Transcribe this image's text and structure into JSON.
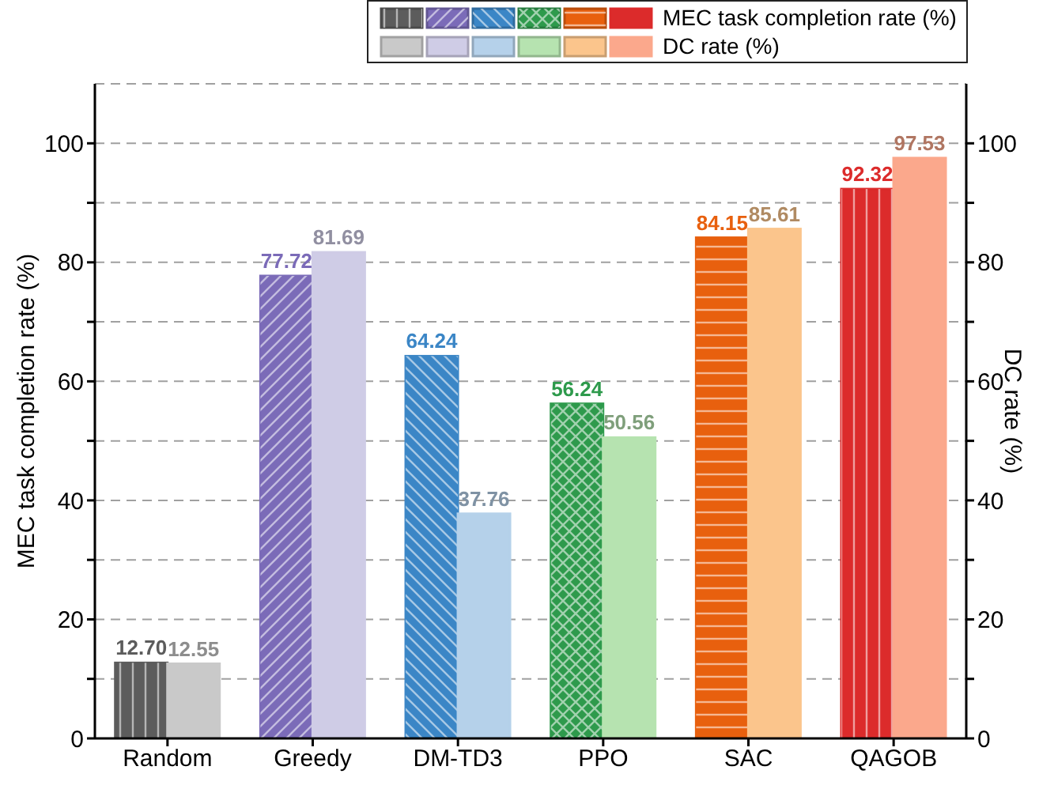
{
  "chart_data": {
    "type": "bar",
    "categories": [
      "Random",
      "Greedy",
      "DM-TD3",
      "PPO",
      "SAC",
      "QAGOB"
    ],
    "ylabel": "MEC task completion rate (%)",
    "y2label": "DC rate (%)",
    "series": [
      {
        "name": "MEC task completion rate (%)",
        "color": "#dc2b2b",
        "values": [
          12.7,
          77.72,
          64.24,
          56.24,
          84.15,
          92.32
        ],
        "value_labels": [
          "12.70",
          "77.72",
          "64.24",
          "56.24",
          "84.15",
          "92.32"
        ],
        "colors": [
          "#5c5c5c",
          "#7b6bb8",
          "#3b86c6",
          "#2e9a4c",
          "#e8600e",
          "#dc2b2b"
        ]
      },
      {
        "name": "DC rate (%)",
        "color": "#fba88c",
        "axis": "y2",
        "values": [
          12.55,
          81.69,
          37.76,
          50.56,
          85.61,
          97.53
        ],
        "value_labels": [
          "12.55",
          "81.69",
          "37.76",
          "50.56",
          "85.61",
          "97.53"
        ],
        "colors": [
          "#c9c9c9",
          "#cfcce6",
          "#b5d1ea",
          "#b6e3b0",
          "#fbc58c",
          "#fba88c"
        ]
      }
    ],
    "ylim": [
      0,
      110
    ],
    "yticks": [
      0,
      {
        "value": 10,
        "label": null
      },
      20,
      {
        "value": 30,
        "label": null
      },
      40,
      {
        "value": 50,
        "label": null
      },
      60,
      {
        "value": 70,
        "label": null
      },
      80,
      {
        "value": 90,
        "label": null
      },
      100
    ],
    "y2lim": [
      0,
      110
    ],
    "y2ticks": [
      0,
      {
        "value": 10,
        "label": null
      },
      20,
      {
        "value": 30,
        "label": null
      },
      40,
      {
        "value": 50,
        "label": null
      },
      60,
      {
        "value": 70,
        "label": null
      },
      80,
      {
        "value": 90,
        "label": null
      },
      100
    ],
    "grid": "y",
    "legend": "top"
  }
}
